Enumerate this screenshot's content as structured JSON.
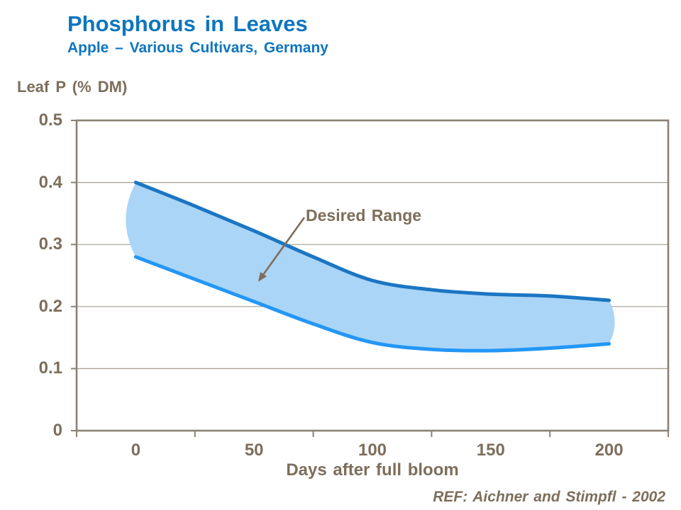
{
  "header": {
    "title": "Phosphorus in Leaves",
    "subtitle": "Apple – Various Cultivars, Germany"
  },
  "chart_data": {
    "type": "area",
    "title": "Phosphorus in Leaves",
    "subtitle": "Apple – Various Cultivars, Germany",
    "ylabel": "Leaf P (% DM)",
    "xlabel": "Days after full bloom",
    "band_label": "Desired Range",
    "x": [
      0,
      25,
      50,
      75,
      100,
      125,
      150,
      175,
      200
    ],
    "series": [
      {
        "name": "upper bound",
        "values": [
          0.4,
          0.362,
          0.322,
          0.28,
          0.242,
          0.227,
          0.22,
          0.217,
          0.21
        ]
      },
      {
        "name": "lower bound",
        "values": [
          0.28,
          0.244,
          0.208,
          0.172,
          0.142,
          0.131,
          0.129,
          0.133,
          0.14
        ]
      }
    ],
    "ylim": [
      0,
      0.5
    ],
    "xlim": [
      -25,
      225
    ],
    "y_ticks": [
      0,
      0.1,
      0.2,
      0.3,
      0.4,
      0.5
    ],
    "y_tick_labels": [
      "0",
      "0.1",
      "0.2",
      "0.3",
      "0.4",
      "0.5"
    ],
    "x_tick_values": [
      0,
      50,
      100,
      150,
      200
    ],
    "x_tick_labels": [
      "0",
      "50",
      "100",
      "150",
      "200"
    ],
    "x_boundary_ticks": [
      -25,
      25,
      75,
      125,
      175,
      225
    ],
    "grid": "horizontal gridlines, full frame",
    "legend_position": "none"
  },
  "footer": {
    "ref": "REF: Aichner and Stimpfl - 2002"
  },
  "colors": {
    "title_blue": "#0E76BF",
    "text_brown": "#7D6E5B",
    "axis": "#8B8173",
    "gridline": "#A49D92",
    "band_fill": "#ABD5F7",
    "upper_line": "#1B76C3",
    "lower_line": "#2397F6"
  }
}
